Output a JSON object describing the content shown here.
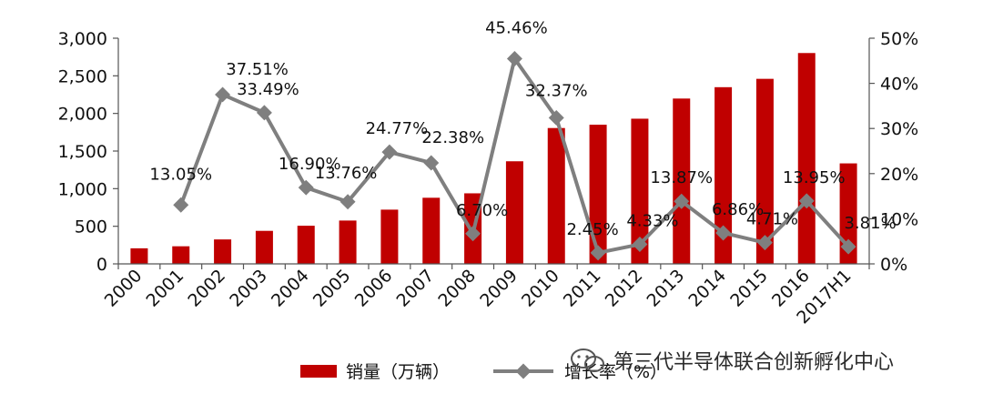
{
  "chart_data": {
    "type": "bar+line",
    "categories": [
      "2000",
      "2001",
      "2002",
      "2003",
      "2004",
      "2005",
      "2006",
      "2007",
      "2008",
      "2009",
      "2010",
      "2011",
      "2012",
      "2013",
      "2014",
      "2015",
      "2016",
      "2017H1"
    ],
    "bar_series": {
      "name": "销量（万辆）",
      "color": "#c00000",
      "values": [
        207,
        234,
        325,
        439,
        507,
        576,
        721,
        879,
        938,
        1364,
        1806,
        1850,
        1930,
        2198,
        2349,
        2460,
        2803,
        1336
      ]
    },
    "line_series": {
      "name": "增长率（%）",
      "color": "#7f7f7f",
      "values": [
        null,
        13.05,
        37.51,
        33.49,
        16.9,
        13.76,
        24.77,
        22.38,
        6.7,
        45.46,
        32.37,
        2.45,
        4.33,
        13.87,
        6.86,
        4.71,
        13.95,
        3.81
      ],
      "labels": [
        "",
        "13.05%",
        "37.51%",
        "33.49%",
        "16.90%",
        "13.76%",
        "24.77%",
        "22.38%",
        "6.70%",
        "45.46%",
        "32.37%",
        "2.45%",
        "4.33%",
        "13.87%",
        "6.86%",
        "4.71%",
        "13.95%",
        "3.81%"
      ]
    },
    "y_left": {
      "ylim": [
        0,
        3000
      ],
      "ticks": [
        0,
        500,
        1000,
        1500,
        2000,
        2500,
        3000
      ],
      "tick_labels": [
        "0",
        "500",
        "1,000",
        "1,500",
        "2,000",
        "2,500",
        "3,000"
      ]
    },
    "y_right": {
      "ylim": [
        0,
        50
      ],
      "ticks": [
        0,
        10,
        20,
        30,
        40,
        50
      ],
      "tick_labels": [
        "0%",
        "10%",
        "20%",
        "30%",
        "40%",
        "50%"
      ]
    },
    "grid": false,
    "legend_position": "bottom"
  },
  "watermark": {
    "text": "第三代半导体联合创新孵化中心",
    "icon": "wechat-icon"
  }
}
